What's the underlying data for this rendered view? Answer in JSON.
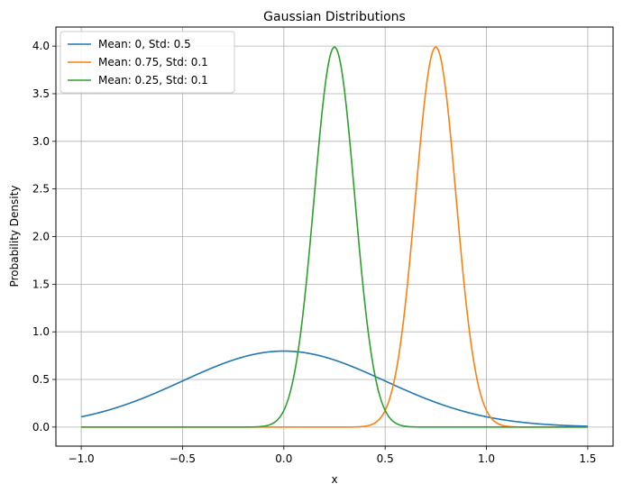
{
  "chart_data": {
    "type": "line",
    "title": "Gaussian Distributions",
    "xlabel": "x",
    "ylabel": "Probability Density",
    "xlim": [
      -1.125,
      1.625
    ],
    "ylim": [
      -0.2,
      4.2
    ],
    "x_range": [
      -1.0,
      1.5
    ],
    "xticks": [
      -1.0,
      -0.5,
      0.0,
      0.5,
      1.0,
      1.5
    ],
    "xtick_labels": [
      "−1.0",
      "−0.5",
      "0.0",
      "0.5",
      "1.0",
      "1.5"
    ],
    "yticks": [
      0.0,
      0.5,
      1.0,
      1.5,
      2.0,
      2.5,
      3.0,
      3.5,
      4.0
    ],
    "ytick_labels": [
      "0.0",
      "0.5",
      "1.0",
      "1.5",
      "2.0",
      "2.5",
      "3.0",
      "3.5",
      "4.0"
    ],
    "grid": true,
    "legend_position": "top-left",
    "series": [
      {
        "name": "Mean: 0, Std: 0.5",
        "mean": 0,
        "std": 0.5,
        "color": "#1f77b4"
      },
      {
        "name": "Mean: 0.75, Std: 0.1",
        "mean": 0.75,
        "std": 0.1,
        "color": "#ff7f0e"
      },
      {
        "name": "Mean: 0.25, Std: 0.1",
        "mean": 0.25,
        "std": 0.1,
        "color": "#2ca02c"
      }
    ]
  }
}
